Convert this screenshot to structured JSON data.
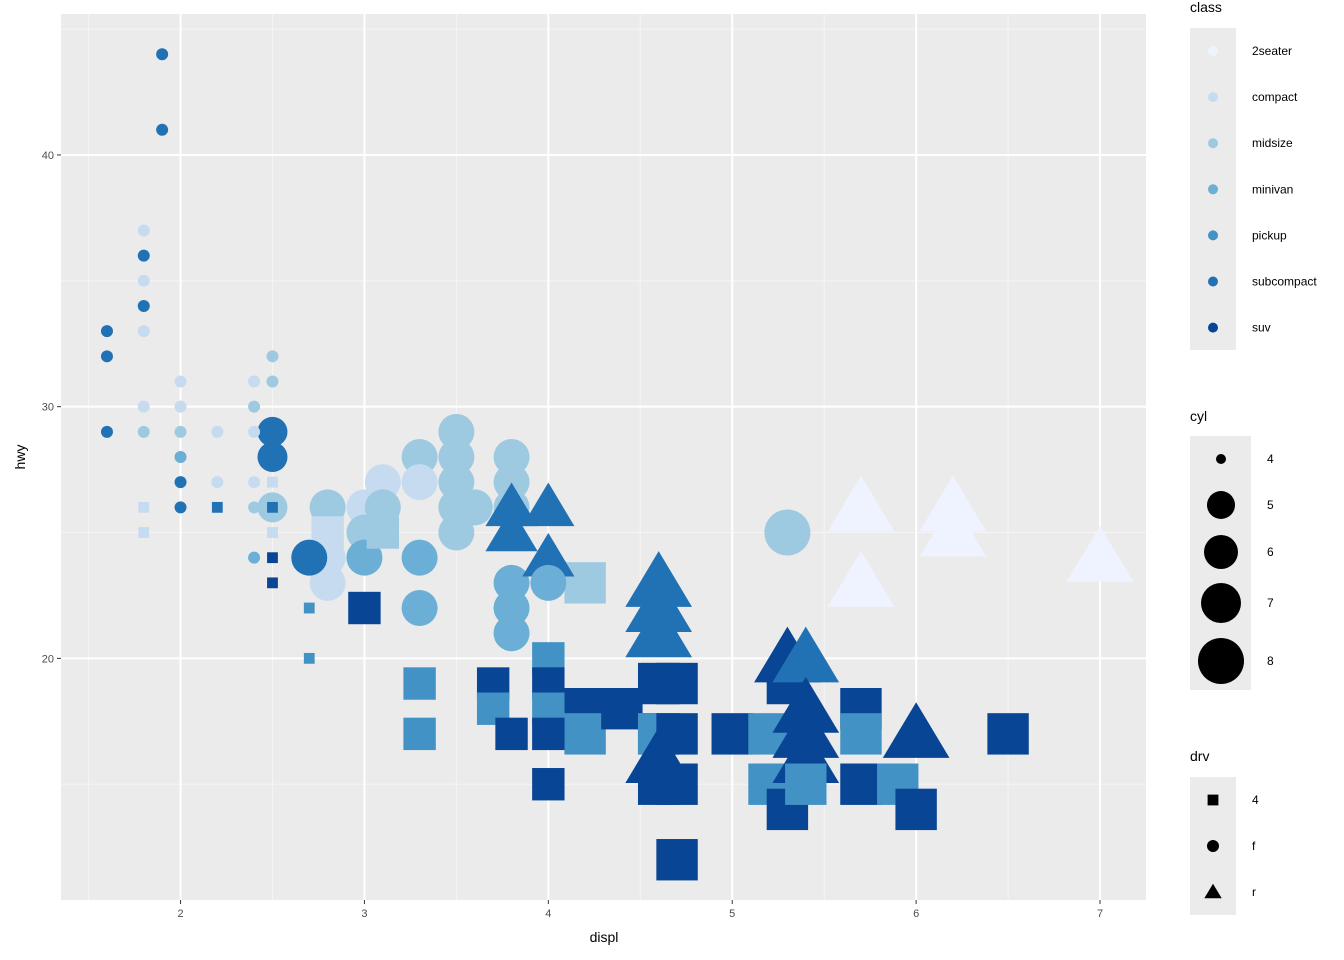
{
  "chart_data": {
    "type": "scatter",
    "title": "",
    "xlabel": "displ",
    "ylabel": "hwy",
    "xlim": [
      1.35,
      7.25
    ],
    "ylim": [
      10.4,
      45.6
    ],
    "x_ticks": [
      2,
      3,
      4,
      5,
      6,
      7
    ],
    "y_ticks": [
      20,
      30,
      40
    ],
    "grid": true,
    "legend_position": "right",
    "encodings": {
      "color": "class",
      "size": "cyl",
      "shape": "drv"
    },
    "legends": {
      "class": {
        "title": "class",
        "entries": [
          "2seater",
          "compact",
          "midsize",
          "minivan",
          "pickup",
          "subcompact",
          "suv"
        ],
        "colors": [
          "#eff3ff",
          "#c6dbef",
          "#9ecae1",
          "#6baed6",
          "#4292c6",
          "#2171b5",
          "#084594"
        ]
      },
      "cyl": {
        "title": "cyl",
        "entries": [
          "4",
          "5",
          "6",
          "7",
          "8"
        ]
      },
      "drv": {
        "title": "drv",
        "entries": [
          "4",
          "f",
          "r"
        ],
        "shapes": [
          "square",
          "circle",
          "triangle"
        ]
      }
    },
    "points": [
      {
        "x": 1.9,
        "y": 44,
        "class": "subcompact",
        "cyl": 4,
        "drv": "f"
      },
      {
        "x": 1.9,
        "y": 41,
        "class": "subcompact",
        "cyl": 4,
        "drv": "f"
      },
      {
        "x": 1.8,
        "y": 37,
        "class": "compact",
        "cyl": 4,
        "drv": "f"
      },
      {
        "x": 1.8,
        "y": 36,
        "class": "subcompact",
        "cyl": 4,
        "drv": "f"
      },
      {
        "x": 1.8,
        "y": 35,
        "class": "compact",
        "cyl": 4,
        "drv": "f"
      },
      {
        "x": 1.8,
        "y": 34,
        "class": "subcompact",
        "cyl": 4,
        "drv": "f"
      },
      {
        "x": 1.8,
        "y": 33,
        "class": "compact",
        "cyl": 4,
        "drv": "f"
      },
      {
        "x": 1.6,
        "y": 33,
        "class": "subcompact",
        "cyl": 4,
        "drv": "f"
      },
      {
        "x": 1.6,
        "y": 32,
        "class": "subcompact",
        "cyl": 4,
        "drv": "f"
      },
      {
        "x": 1.6,
        "y": 29,
        "class": "subcompact",
        "cyl": 4,
        "drv": "f"
      },
      {
        "x": 1.8,
        "y": 30,
        "class": "compact",
        "cyl": 4,
        "drv": "f"
      },
      {
        "x": 1.8,
        "y": 29,
        "class": "midsize",
        "cyl": 4,
        "drv": "f"
      },
      {
        "x": 1.8,
        "y": 26,
        "class": "compact",
        "cyl": 4,
        "drv": "4"
      },
      {
        "x": 1.8,
        "y": 25,
        "class": "compact",
        "cyl": 4,
        "drv": "4"
      },
      {
        "x": 2.0,
        "y": 31,
        "class": "compact",
        "cyl": 4,
        "drv": "f"
      },
      {
        "x": 2.0,
        "y": 30,
        "class": "compact",
        "cyl": 4,
        "drv": "f"
      },
      {
        "x": 2.0,
        "y": 29,
        "class": "midsize",
        "cyl": 4,
        "drv": "f"
      },
      {
        "x": 2.0,
        "y": 28,
        "class": "minivan",
        "cyl": 4,
        "drv": "f"
      },
      {
        "x": 2.0,
        "y": 27,
        "class": "subcompact",
        "cyl": 4,
        "drv": "f"
      },
      {
        "x": 2.0,
        "y": 26,
        "class": "subcompact",
        "cyl": 4,
        "drv": "f"
      },
      {
        "x": 2.2,
        "y": 29,
        "class": "compact",
        "cyl": 4,
        "drv": "f"
      },
      {
        "x": 2.2,
        "y": 27,
        "class": "compact",
        "cyl": 4,
        "drv": "f"
      },
      {
        "x": 2.2,
        "y": 26,
        "class": "subcompact",
        "cyl": 4,
        "drv": "4"
      },
      {
        "x": 2.4,
        "y": 31,
        "class": "compact",
        "cyl": 4,
        "drv": "f"
      },
      {
        "x": 2.4,
        "y": 30,
        "class": "midsize",
        "cyl": 4,
        "drv": "f"
      },
      {
        "x": 2.4,
        "y": 29,
        "class": "compact",
        "cyl": 4,
        "drv": "f"
      },
      {
        "x": 2.4,
        "y": 27,
        "class": "compact",
        "cyl": 4,
        "drv": "f"
      },
      {
        "x": 2.4,
        "y": 26,
        "class": "midsize",
        "cyl": 4,
        "drv": "f"
      },
      {
        "x": 2.4,
        "y": 24,
        "class": "minivan",
        "cyl": 4,
        "drv": "f"
      },
      {
        "x": 2.5,
        "y": 32,
        "class": "midsize",
        "cyl": 4,
        "drv": "f"
      },
      {
        "x": 2.5,
        "y": 31,
        "class": "midsize",
        "cyl": 4,
        "drv": "f"
      },
      {
        "x": 2.5,
        "y": 29,
        "class": "subcompact",
        "cyl": 5,
        "drv": "f"
      },
      {
        "x": 2.5,
        "y": 28,
        "class": "subcompact",
        "cyl": 5,
        "drv": "f"
      },
      {
        "x": 2.5,
        "y": 27,
        "class": "compact",
        "cyl": 4,
        "drv": "4"
      },
      {
        "x": 2.5,
        "y": 26,
        "class": "midsize",
        "cyl": 5,
        "drv": "f"
      },
      {
        "x": 2.5,
        "y": 26,
        "class": "subcompact",
        "cyl": 4,
        "drv": "4"
      },
      {
        "x": 2.5,
        "y": 25,
        "class": "compact",
        "cyl": 4,
        "drv": "4"
      },
      {
        "x": 2.5,
        "y": 24,
        "class": "suv",
        "cyl": 4,
        "drv": "4"
      },
      {
        "x": 2.5,
        "y": 23,
        "class": "suv",
        "cyl": 4,
        "drv": "4"
      },
      {
        "x": 2.7,
        "y": 22,
        "class": "pickup",
        "cyl": 4,
        "drv": "4"
      },
      {
        "x": 2.7,
        "y": 20,
        "class": "pickup",
        "cyl": 4,
        "drv": "4"
      },
      {
        "x": 2.8,
        "y": 26,
        "class": "midsize",
        "cyl": 6,
        "drv": "f"
      },
      {
        "x": 2.8,
        "y": 25,
        "class": "compact",
        "cyl": 6,
        "drv": "4"
      },
      {
        "x": 2.8,
        "y": 24,
        "class": "compact",
        "cyl": 6,
        "drv": "f"
      },
      {
        "x": 2.8,
        "y": 23,
        "class": "compact",
        "cyl": 6,
        "drv": "f"
      },
      {
        "x": 2.7,
        "y": 24,
        "class": "subcompact",
        "cyl": 6,
        "drv": "f"
      },
      {
        "x": 3.0,
        "y": 26,
        "class": "compact",
        "cyl": 6,
        "drv": "f"
      },
      {
        "x": 3.0,
        "y": 25,
        "class": "midsize",
        "cyl": 6,
        "drv": "f"
      },
      {
        "x": 3.0,
        "y": 24,
        "class": "minivan",
        "cyl": 6,
        "drv": "f"
      },
      {
        "x": 3.0,
        "y": 22,
        "class": "suv",
        "cyl": 6,
        "drv": "4"
      },
      {
        "x": 3.1,
        "y": 27,
        "class": "compact",
        "cyl": 6,
        "drv": "f"
      },
      {
        "x": 3.1,
        "y": 26,
        "class": "midsize",
        "cyl": 6,
        "drv": "f"
      },
      {
        "x": 3.1,
        "y": 25,
        "class": "midsize",
        "cyl": 6,
        "drv": "4"
      },
      {
        "x": 3.3,
        "y": 28,
        "class": "midsize",
        "cyl": 6,
        "drv": "f"
      },
      {
        "x": 3.3,
        "y": 27,
        "class": "compact",
        "cyl": 6,
        "drv": "f"
      },
      {
        "x": 3.3,
        "y": 24,
        "class": "minivan",
        "cyl": 6,
        "drv": "f"
      },
      {
        "x": 3.3,
        "y": 22,
        "class": "minivan",
        "cyl": 6,
        "drv": "f"
      },
      {
        "x": 3.3,
        "y": 19,
        "class": "pickup",
        "cyl": 6,
        "drv": "4"
      },
      {
        "x": 3.3,
        "y": 17,
        "class": "pickup",
        "cyl": 6,
        "drv": "4"
      },
      {
        "x": 3.5,
        "y": 29,
        "class": "midsize",
        "cyl": 6,
        "drv": "f"
      },
      {
        "x": 3.5,
        "y": 28,
        "class": "midsize",
        "cyl": 6,
        "drv": "f"
      },
      {
        "x": 3.5,
        "y": 27,
        "class": "midsize",
        "cyl": 6,
        "drv": "f"
      },
      {
        "x": 3.5,
        "y": 26,
        "class": "midsize",
        "cyl": 6,
        "drv": "f"
      },
      {
        "x": 3.5,
        "y": 25,
        "class": "midsize",
        "cyl": 6,
        "drv": "f"
      },
      {
        "x": 3.6,
        "y": 26,
        "class": "midsize",
        "cyl": 6,
        "drv": "f"
      },
      {
        "x": 3.7,
        "y": 19,
        "class": "suv",
        "cyl": 6,
        "drv": "4"
      },
      {
        "x": 3.7,
        "y": 18,
        "class": "pickup",
        "cyl": 6,
        "drv": "4"
      },
      {
        "x": 3.8,
        "y": 28,
        "class": "midsize",
        "cyl": 6,
        "drv": "f"
      },
      {
        "x": 3.8,
        "y": 27,
        "class": "midsize",
        "cyl": 6,
        "drv": "f"
      },
      {
        "x": 3.8,
        "y": 26,
        "class": "midsize",
        "cyl": 6,
        "drv": "f"
      },
      {
        "x": 3.8,
        "y": 26,
        "class": "subcompact",
        "cyl": 6,
        "drv": "r"
      },
      {
        "x": 3.8,
        "y": 25,
        "class": "subcompact",
        "cyl": 6,
        "drv": "r"
      },
      {
        "x": 3.8,
        "y": 23,
        "class": "minivan",
        "cyl": 6,
        "drv": "f"
      },
      {
        "x": 3.8,
        "y": 22,
        "class": "minivan",
        "cyl": 6,
        "drv": "f"
      },
      {
        "x": 3.8,
        "y": 21,
        "class": "minivan",
        "cyl": 6,
        "drv": "f"
      },
      {
        "x": 3.8,
        "y": 17,
        "class": "suv",
        "cyl": 6,
        "drv": "4"
      },
      {
        "x": 4.0,
        "y": 26,
        "class": "subcompact",
        "cyl": 6,
        "drv": "r"
      },
      {
        "x": 4.0,
        "y": 24,
        "class": "subcompact",
        "cyl": 6,
        "drv": "r"
      },
      {
        "x": 4.0,
        "y": 23,
        "class": "minivan",
        "cyl": 6,
        "drv": "f"
      },
      {
        "x": 4.0,
        "y": 20,
        "class": "pickup",
        "cyl": 6,
        "drv": "4"
      },
      {
        "x": 4.0,
        "y": 19,
        "class": "suv",
        "cyl": 6,
        "drv": "4"
      },
      {
        "x": 4.0,
        "y": 18,
        "class": "pickup",
        "cyl": 6,
        "drv": "4"
      },
      {
        "x": 4.0,
        "y": 17,
        "class": "suv",
        "cyl": 6,
        "drv": "4"
      },
      {
        "x": 4.0,
        "y": 15,
        "class": "suv",
        "cyl": 6,
        "drv": "4"
      },
      {
        "x": 4.2,
        "y": 23,
        "class": "midsize",
        "cyl": 8,
        "drv": "4"
      },
      {
        "x": 4.2,
        "y": 18,
        "class": "suv",
        "cyl": 8,
        "drv": "4"
      },
      {
        "x": 4.2,
        "y": 17,
        "class": "pickup",
        "cyl": 8,
        "drv": "4"
      },
      {
        "x": 4.4,
        "y": 18,
        "class": "suv",
        "cyl": 8,
        "drv": "4"
      },
      {
        "x": 4.6,
        "y": 23,
        "class": "subcompact",
        "cyl": 8,
        "drv": "r"
      },
      {
        "x": 4.6,
        "y": 22,
        "class": "subcompact",
        "cyl": 8,
        "drv": "r"
      },
      {
        "x": 4.6,
        "y": 21,
        "class": "subcompact",
        "cyl": 8,
        "drv": "r"
      },
      {
        "x": 4.6,
        "y": 19,
        "class": "suv",
        "cyl": 8,
        "drv": "4"
      },
      {
        "x": 4.6,
        "y": 17,
        "class": "suv",
        "cyl": 8,
        "drv": "4"
      },
      {
        "x": 4.6,
        "y": 17,
        "class": "pickup",
        "cyl": 8,
        "drv": "4"
      },
      {
        "x": 4.6,
        "y": 16,
        "class": "suv",
        "cyl": 8,
        "drv": "r"
      },
      {
        "x": 4.6,
        "y": 15,
        "class": "suv",
        "cyl": 8,
        "drv": "4"
      },
      {
        "x": 4.7,
        "y": 19,
        "class": "suv",
        "cyl": 8,
        "drv": "4"
      },
      {
        "x": 4.7,
        "y": 17,
        "class": "suv",
        "cyl": 8,
        "drv": "4"
      },
      {
        "x": 4.7,
        "y": 15,
        "class": "suv",
        "cyl": 8,
        "drv": "4"
      },
      {
        "x": 4.7,
        "y": 12,
        "class": "suv",
        "cyl": 8,
        "drv": "4"
      },
      {
        "x": 5.0,
        "y": 17,
        "class": "suv",
        "cyl": 8,
        "drv": "4"
      },
      {
        "x": 5.2,
        "y": 17,
        "class": "pickup",
        "cyl": 8,
        "drv": "4"
      },
      {
        "x": 5.2,
        "y": 15,
        "class": "pickup",
        "cyl": 8,
        "drv": "4"
      },
      {
        "x": 5.3,
        "y": 25,
        "class": "midsize",
        "cyl": 8,
        "drv": "f"
      },
      {
        "x": 5.3,
        "y": 20,
        "class": "suv",
        "cyl": 8,
        "drv": "r"
      },
      {
        "x": 5.3,
        "y": 19,
        "class": "suv",
        "cyl": 8,
        "drv": "4"
      },
      {
        "x": 5.3,
        "y": 15,
        "class": "pickup",
        "cyl": 8,
        "drv": "4"
      },
      {
        "x": 5.3,
        "y": 14,
        "class": "suv",
        "cyl": 8,
        "drv": "4"
      },
      {
        "x": 5.4,
        "y": 20,
        "class": "subcompact",
        "cyl": 8,
        "drv": "r"
      },
      {
        "x": 5.4,
        "y": 18,
        "class": "suv",
        "cyl": 8,
        "drv": "r"
      },
      {
        "x": 5.4,
        "y": 17,
        "class": "suv",
        "cyl": 8,
        "drv": "r"
      },
      {
        "x": 5.4,
        "y": 16,
        "class": "suv",
        "cyl": 8,
        "drv": "r"
      },
      {
        "x": 5.4,
        "y": 15,
        "class": "pickup",
        "cyl": 8,
        "drv": "4"
      },
      {
        "x": 5.7,
        "y": 26,
        "class": "2seater",
        "cyl": 8,
        "drv": "r"
      },
      {
        "x": 5.7,
        "y": 23,
        "class": "2seater",
        "cyl": 8,
        "drv": "r"
      },
      {
        "x": 5.7,
        "y": 18,
        "class": "suv",
        "cyl": 8,
        "drv": "4"
      },
      {
        "x": 5.7,
        "y": 17,
        "class": "pickup",
        "cyl": 8,
        "drv": "4"
      },
      {
        "x": 5.7,
        "y": 15,
        "class": "suv",
        "cyl": 8,
        "drv": "4"
      },
      {
        "x": 5.9,
        "y": 15,
        "class": "pickup",
        "cyl": 8,
        "drv": "4"
      },
      {
        "x": 6.0,
        "y": 17,
        "class": "suv",
        "cyl": 8,
        "drv": "r"
      },
      {
        "x": 6.0,
        "y": 14,
        "class": "suv",
        "cyl": 8,
        "drv": "4"
      },
      {
        "x": 6.2,
        "y": 26,
        "class": "2seater",
        "cyl": 8,
        "drv": "r"
      },
      {
        "x": 6.2,
        "y": 25,
        "class": "2seater",
        "cyl": 8,
        "drv": "r"
      },
      {
        "x": 6.5,
        "y": 17,
        "class": "suv",
        "cyl": 8,
        "drv": "4"
      },
      {
        "x": 7.0,
        "y": 24,
        "class": "2seater",
        "cyl": 8,
        "drv": "r"
      }
    ]
  }
}
